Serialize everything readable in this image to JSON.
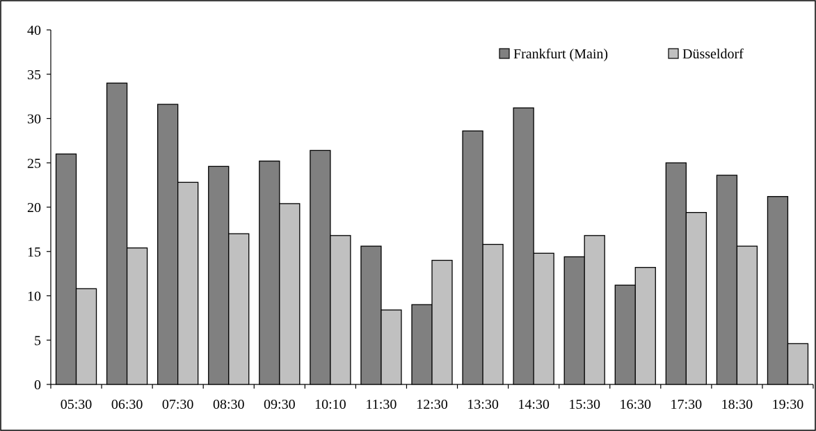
{
  "chart_data": {
    "type": "bar",
    "title": "",
    "xlabel": "",
    "ylabel": "",
    "ylim": [
      0,
      40
    ],
    "yticks": [
      0,
      5,
      10,
      15,
      20,
      25,
      30,
      35,
      40
    ],
    "grid": false,
    "legend_position": "top-right",
    "categories": [
      "05:30",
      "06:30",
      "07:30",
      "08:30",
      "09:30",
      "10:10",
      "11:30",
      "12:30",
      "13:30",
      "14:30",
      "15:30",
      "16:30",
      "17:30",
      "18:30",
      "19:30"
    ],
    "series": [
      {
        "name": "Frankfurt (Main)",
        "color": "#808080",
        "values": [
          26.0,
          34.0,
          31.6,
          24.6,
          25.2,
          26.4,
          15.6,
          9.0,
          28.6,
          31.2,
          14.4,
          11.2,
          25.0,
          23.6,
          21.2
        ]
      },
      {
        "name": "Düsseldorf",
        "color": "#c0c0c0",
        "values": [
          10.8,
          15.4,
          22.8,
          17.0,
          20.4,
          16.8,
          8.4,
          14.0,
          15.8,
          14.8,
          16.8,
          13.2,
          19.4,
          15.6,
          4.6
        ]
      }
    ]
  }
}
